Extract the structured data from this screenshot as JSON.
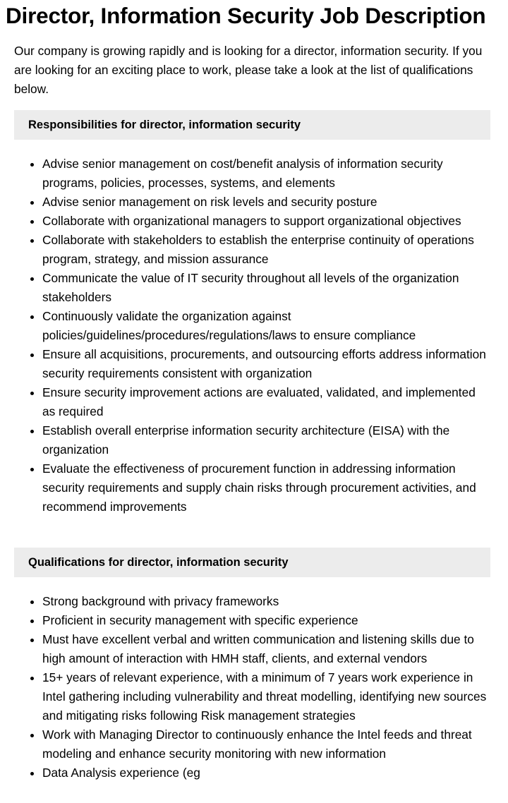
{
  "title": "Director, Information Security Job Description",
  "intro": "Our company is growing rapidly and is looking for a director, information security. If you are looking for an exciting place to work, please take a look at the list of qualifications below.",
  "responsibilities": {
    "heading": "Responsibilities for director, information security",
    "items": [
      "Advise senior management on cost/benefit analysis of information security programs, policies, processes, systems, and elements",
      "Advise senior management on risk levels and security posture",
      "Collaborate with organizational managers to support organizational objectives",
      "Collaborate with stakeholders to establish the enterprise continuity of operations program, strategy, and mission assurance",
      "Communicate the value of IT security throughout all levels of the organization stakeholders",
      "Continuously validate the organization against policies/guidelines/procedures/regulations/laws to ensure compliance",
      "Ensure all acquisitions, procurements, and outsourcing efforts address information security requirements consistent with organization",
      "Ensure security improvement actions are evaluated, validated, and implemented as required",
      "Establish overall enterprise information security architecture (EISA) with the organization",
      "Evaluate the effectiveness of procurement function in addressing information security requirements and supply chain risks through procurement activities, and recommend improvements"
    ]
  },
  "qualifications": {
    "heading": "Qualifications for director, information security",
    "items": [
      "Strong background with privacy frameworks",
      "Proficient in security management with specific experience",
      "Must have excellent verbal and written communication and listening skills due to high amount of interaction with HMH staff, clients, and external vendors",
      "15+ years of relevant experience, with a minimum of 7 years work experience in Intel gathering including vulnerability and threat modelling, identifying new sources and mitigating risks following Risk management strategies",
      "Work with Managing Director to continuously enhance the Intel feeds and threat modeling and enhance security monitoring with new information",
      "Data Analysis experience (eg"
    ]
  },
  "colors": {
    "section_header_bg": "#ececec",
    "text": "#000000"
  }
}
